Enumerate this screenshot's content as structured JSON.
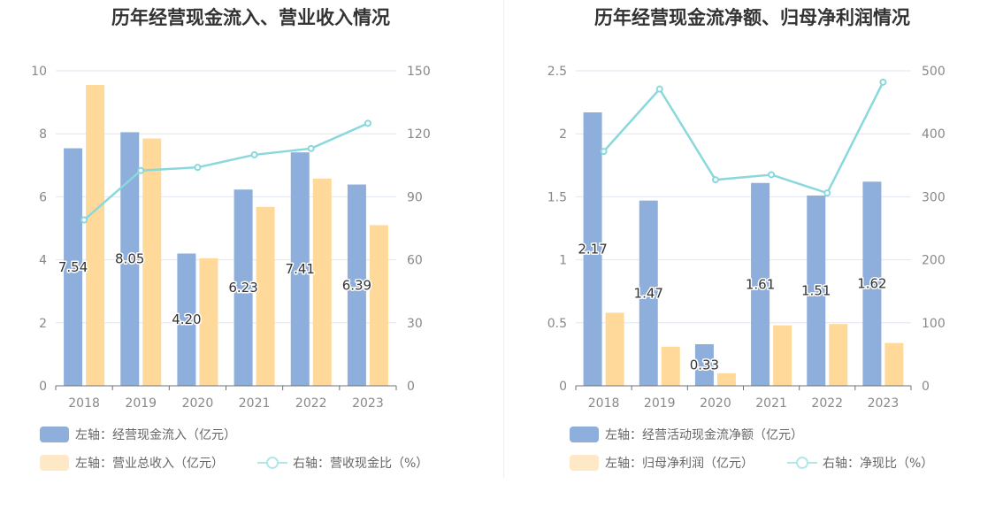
{
  "chart_data": [
    {
      "type": "bar",
      "title": "历年经营现金流入、营业收入情况",
      "categories": [
        "2018",
        "2019",
        "2020",
        "2021",
        "2022",
        "2023"
      ],
      "left_axis": {
        "ylim": [
          0,
          10
        ],
        "ticks": [
          "0",
          "2",
          "4",
          "6",
          "8",
          "10"
        ]
      },
      "right_axis": {
        "ylim": [
          0,
          150
        ],
        "ticks": [
          "0",
          "30",
          "60",
          "90",
          "120",
          "150"
        ]
      },
      "series": [
        {
          "name": "左轴：经营现金流入（亿元）",
          "axis": "left",
          "kind": "bar",
          "color": "#8eaedc",
          "values": [
            7.54,
            8.05,
            4.2,
            6.23,
            7.41,
            6.39
          ],
          "labels": [
            "7.54",
            "8.05",
            "4.20",
            "6.23",
            "7.41",
            "6.39"
          ]
        },
        {
          "name": "左轴：营业总收入（亿元）",
          "axis": "left",
          "kind": "bar",
          "color": "#ffd99a",
          "values": [
            9.55,
            7.85,
            4.05,
            5.68,
            6.58,
            5.1
          ]
        },
        {
          "name": "右轴：营收现金比（%）",
          "axis": "right",
          "kind": "line",
          "color": "#89d8dc",
          "values": [
            79,
            102.5,
            104,
            110,
            113,
            125
          ]
        }
      ]
    },
    {
      "type": "bar",
      "title": "历年经营现金流净额、归母净利润情况",
      "categories": [
        "2018",
        "2019",
        "2020",
        "2021",
        "2022",
        "2023"
      ],
      "left_axis": {
        "ylim": [
          0,
          2.5
        ],
        "ticks": [
          "0",
          "0.5",
          "1",
          "1.5",
          "2",
          "2.5"
        ]
      },
      "right_axis": {
        "ylim": [
          0,
          500
        ],
        "ticks": [
          "0",
          "100",
          "200",
          "300",
          "400",
          "500"
        ]
      },
      "series": [
        {
          "name": "左轴：经营活动现金流净额（亿元）",
          "axis": "left",
          "kind": "bar",
          "color": "#8eaedc",
          "values": [
            2.17,
            1.47,
            0.33,
            1.61,
            1.51,
            1.62
          ],
          "labels": [
            "2.17",
            "1.47",
            "0.33",
            "1.61",
            "1.51",
            "1.62"
          ]
        },
        {
          "name": "左轴：归母净利润（亿元）",
          "axis": "left",
          "kind": "bar",
          "color": "#ffd99a",
          "values": [
            0.58,
            0.31,
            0.1,
            0.48,
            0.49,
            0.34
          ]
        },
        {
          "name": "右轴：净现比（%）",
          "axis": "right",
          "kind": "line",
          "color": "#89d8dc",
          "values": [
            372,
            471,
            327,
            335,
            306,
            482
          ]
        }
      ]
    }
  ]
}
